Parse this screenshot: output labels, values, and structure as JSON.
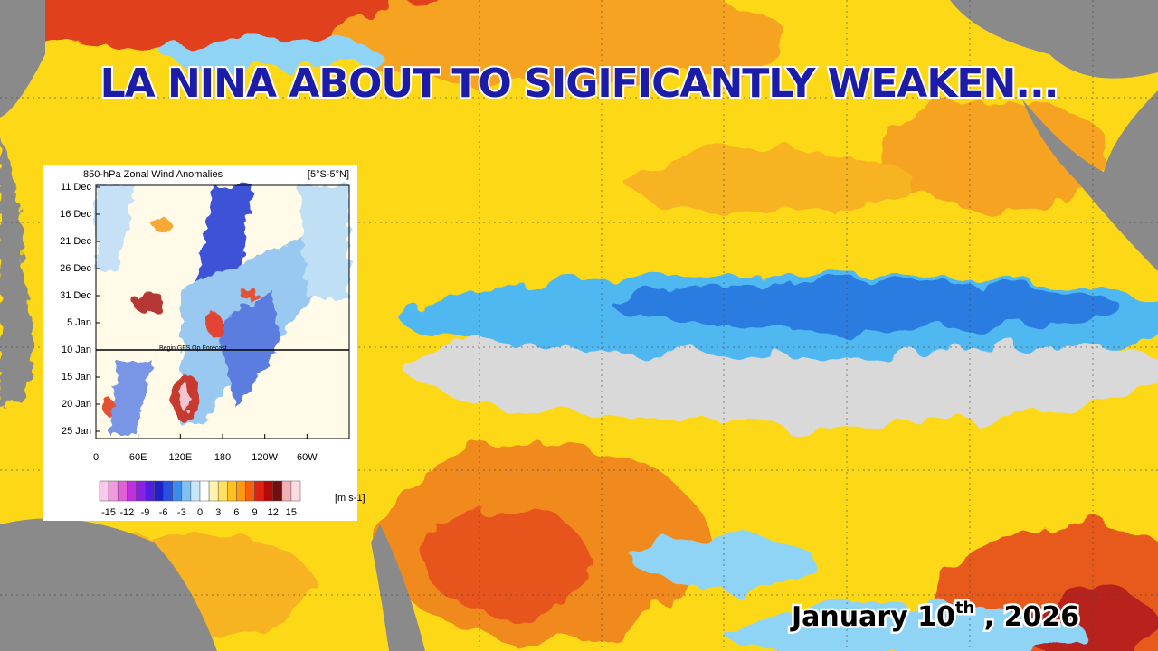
{
  "header": {
    "title": "LA NINA ABOUT TO SIGIFICANTLY WEAKEN..."
  },
  "inset": {
    "title": "850-hPa Zonal Wind Anomalies",
    "region": "[5°S-5°N]",
    "y_labels": [
      "11 Dec",
      "16 Dec",
      "21 Dec",
      "26 Dec",
      "31 Dec",
      "5 Jan",
      "10 Jan",
      "15 Jan",
      "20 Jan",
      "25 Jan"
    ],
    "x_labels": [
      "0",
      "60E",
      "120E",
      "180",
      "120W",
      "60W"
    ],
    "forecast_label": "Begin GFS Op Forecast",
    "colorbar_ticks": [
      -15,
      -12,
      -9,
      -6,
      -3,
      0,
      3,
      6,
      9,
      12,
      15
    ],
    "colorbar_unit": "[m s-1]"
  },
  "date": {
    "main": "January 10",
    "suffix": "th",
    "rest": " , 2026"
  }
}
